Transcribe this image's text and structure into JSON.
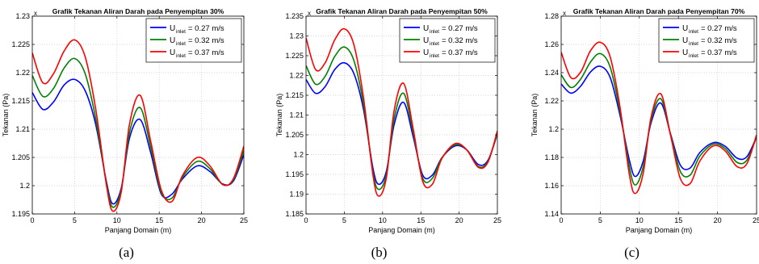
{
  "chart_data": [
    {
      "type": "line",
      "caption": "(a)",
      "title": "Grafik Tekanan Aliran Darah pada Penyempitan 30%",
      "xlabel": "Panjang Domain (m)",
      "ylabel": "Tekanan (Pa)",
      "exponent": "x 10",
      "xlim": [
        0,
        25
      ],
      "ylim": [
        1.195,
        1.23
      ],
      "xticks": [
        0,
        5,
        10,
        15,
        20,
        25
      ],
      "yticks": [
        1.195,
        1.2,
        1.205,
        1.21,
        1.215,
        1.22,
        1.225,
        1.23
      ],
      "ytick_labels": [
        "1.195",
        "1.2",
        "1.205",
        "1.21",
        "1.215",
        "1.22",
        "1.225",
        "1.23"
      ],
      "grid": true,
      "legend_position": "top-right",
      "x": [
        0,
        1.25,
        2.5,
        3.75,
        5,
        6.25,
        7.5,
        8.75,
        9.5,
        10.5,
        11.5,
        12.75,
        14,
        15.25,
        16.5,
        17.75,
        19.5,
        21,
        22.5,
        23.75,
        25
      ],
      "series": [
        {
          "legend_sub": "inlet",
          "legend_value": " = 0.27 m/s",
          "color": "#0000ff",
          "values": [
            1.2165,
            1.2135,
            1.2148,
            1.2178,
            1.2188,
            1.2168,
            1.2108,
            1.2008,
            1.1968,
            1.1995,
            1.2085,
            1.2117,
            1.2058,
            1.1985,
            1.1985,
            1.2012,
            1.2035,
            1.2025,
            1.2003,
            1.2008,
            1.2055
          ]
        },
        {
          "legend_sub": "inlet",
          "legend_value": " = 0.32 m/s",
          "color": "#008000",
          "values": [
            1.2195,
            1.2158,
            1.2172,
            1.2208,
            1.2225,
            1.2198,
            1.2118,
            1.2005,
            1.1962,
            1.1992,
            1.2095,
            1.2138,
            1.2068,
            1.1988,
            1.1978,
            1.2015,
            1.2043,
            1.203,
            1.2002,
            1.201,
            1.2062
          ]
        },
        {
          "legend_sub": "inlet",
          "legend_value": " = 0.37 m/s",
          "color": "#ff0000",
          "values": [
            1.2235,
            1.2182,
            1.2198,
            1.2238,
            1.2258,
            1.2228,
            1.2135,
            1.2002,
            1.1955,
            1.1988,
            1.211,
            1.216,
            1.2078,
            1.1992,
            1.1972,
            1.2018,
            1.205,
            1.2035,
            1.2002,
            1.2012,
            1.207
          ]
        }
      ]
    },
    {
      "type": "line",
      "caption": "(b)",
      "title": "Grafik Tekanan Aliran Darah pada Penyempitan 50%",
      "xlabel": "Panjang Domain (m)",
      "ylabel": "Tekanan (Pa)",
      "exponent": "x 10",
      "xlim": [
        0,
        25
      ],
      "ylim": [
        1.185,
        1.235
      ],
      "xticks": [
        0,
        5,
        10,
        15,
        20,
        25
      ],
      "yticks": [
        1.185,
        1.19,
        1.195,
        1.2,
        1.205,
        1.21,
        1.215,
        1.22,
        1.225,
        1.23,
        1.235
      ],
      "ytick_labels": [
        "1.185",
        "1.19",
        "1.195",
        "1.2",
        "1.205",
        "1.21",
        "1.215",
        "1.22",
        "1.225",
        "1.23",
        "1.235"
      ],
      "grid": true,
      "legend_position": "top-right",
      "x": [
        0,
        1.25,
        2.5,
        3.75,
        5,
        6.25,
        7.5,
        8.75,
        9.5,
        10.5,
        11.5,
        12.75,
        14,
        15.25,
        16.5,
        17.75,
        19.5,
        21,
        22.5,
        23.75,
        25
      ],
      "series": [
        {
          "legend_sub": "inlet",
          "legend_value": " = 0.27 m/s",
          "color": "#0000ff",
          "values": [
            1.219,
            1.2155,
            1.2172,
            1.2215,
            1.2232,
            1.2205,
            1.2115,
            1.1965,
            1.1925,
            1.1958,
            1.2075,
            1.2132,
            1.2045,
            1.1948,
            1.1948,
            1.1992,
            1.2022,
            1.2012,
            1.1975,
            1.1985,
            1.2052
          ]
        },
        {
          "legend_sub": "inlet",
          "legend_value": " = 0.32 m/s",
          "color": "#008000",
          "values": [
            1.2225,
            1.2178,
            1.2198,
            1.2248,
            1.2272,
            1.2238,
            1.2128,
            1.1955,
            1.1912,
            1.195,
            1.209,
            1.2155,
            1.2055,
            1.194,
            1.194,
            1.1992,
            1.2025,
            1.2012,
            1.197,
            1.1982,
            1.2055
          ]
        },
        {
          "legend_sub": "inlet",
          "legend_value": " = 0.37 m/s",
          "color": "#ff0000",
          "values": [
            1.2295,
            1.2215,
            1.2232,
            1.229,
            1.2318,
            1.2278,
            1.2145,
            1.1948,
            1.1895,
            1.1942,
            1.211,
            1.218,
            1.2065,
            1.1932,
            1.1925,
            1.199,
            1.2028,
            1.2012,
            1.1968,
            1.198,
            1.206
          ]
        }
      ]
    },
    {
      "type": "line",
      "caption": "(c)",
      "title": "Grafik Tekanan Aliran Darah pada Penyempitan 70%",
      "xlabel": "Panjang Domain (m)",
      "ylabel": "Tekanan (Pa)",
      "exponent": "x 10",
      "xlim": [
        0,
        25
      ],
      "ylim": [
        1.14,
        1.28
      ],
      "xticks": [
        0,
        5,
        10,
        15,
        20,
        25
      ],
      "yticks": [
        1.14,
        1.16,
        1.18,
        1.2,
        1.22,
        1.24,
        1.26,
        1.28
      ],
      "ytick_labels": [
        "1.14",
        "1.16",
        "1.18",
        "1.2",
        "1.22",
        "1.24",
        "1.26",
        "1.28"
      ],
      "grid": true,
      "legend_position": "top-right",
      "x": [
        0,
        1.25,
        2.5,
        3.75,
        5,
        6.25,
        7.5,
        8.75,
        9.5,
        10.5,
        11.5,
        12.75,
        14,
        15.25,
        16.5,
        17.75,
        19.5,
        21,
        22.5,
        23.75,
        25
      ],
      "series": [
        {
          "legend_sub": "inlet",
          "legend_value": " = 0.27 m/s",
          "color": "#0000ff",
          "values": [
            1.232,
            1.2255,
            1.2305,
            1.2405,
            1.2445,
            1.2368,
            1.2105,
            1.1775,
            1.1665,
            1.1775,
            1.2045,
            1.2185,
            1.1965,
            1.1745,
            1.1725,
            1.1835,
            1.1905,
            1.1878,
            1.1795,
            1.1805,
            1.1945
          ]
        },
        {
          "legend_sub": "inlet",
          "legend_value": " = 0.32 m/s",
          "color": "#008000",
          "values": [
            1.2385,
            1.2295,
            1.2355,
            1.2475,
            1.2535,
            1.2442,
            1.2135,
            1.1725,
            1.1605,
            1.1735,
            1.2065,
            1.2215,
            1.196,
            1.17,
            1.1675,
            1.181,
            1.1895,
            1.1862,
            1.1765,
            1.178,
            1.1945
          ]
        },
        {
          "legend_sub": "inlet",
          "legend_value": " = 0.37 m/s",
          "color": "#ff0000",
          "values": [
            1.2545,
            1.2365,
            1.2405,
            1.2555,
            1.2615,
            1.2515,
            1.2165,
            1.167,
            1.1545,
            1.169,
            1.2085,
            1.225,
            1.1955,
            1.165,
            1.1615,
            1.1775,
            1.1882,
            1.1845,
            1.1735,
            1.1755,
            1.196
          ]
        }
      ]
    }
  ]
}
